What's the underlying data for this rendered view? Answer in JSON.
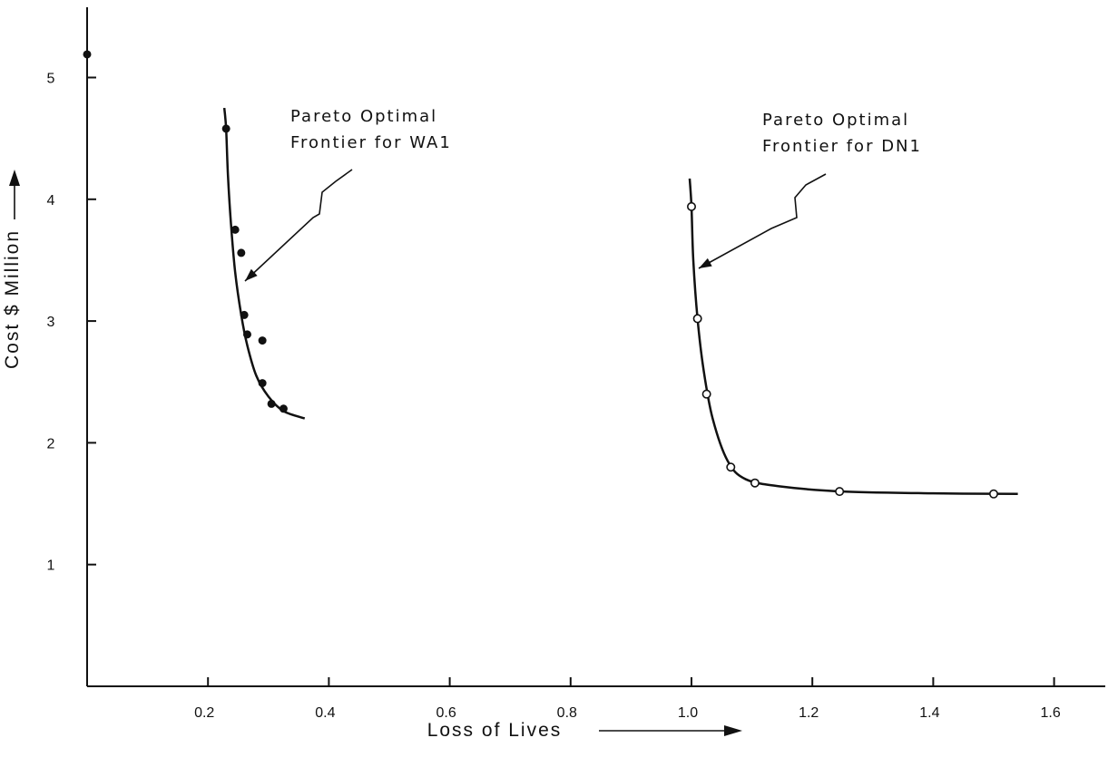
{
  "chart_data": {
    "type": "scatter",
    "xlabel": "Loss of Lives",
    "ylabel": "Cost $ Million",
    "xlim": [
      0,
      1.7
    ],
    "ylim": [
      0,
      5.5
    ],
    "x_ticks": [
      "0.2",
      "0.4",
      "0.6",
      "0.8",
      "1.0",
      "1.2",
      "1.4",
      "1.6"
    ],
    "y_ticks": [
      "1",
      "2",
      "3",
      "4",
      "5"
    ],
    "grid": false,
    "series": [
      {
        "marker": "filled",
        "points": [
          [
            0.0,
            5.19
          ],
          [
            0.23,
            4.58
          ],
          [
            0.245,
            3.75
          ],
          [
            0.255,
            3.56
          ],
          [
            0.26,
            3.05
          ],
          [
            0.265,
            2.89
          ],
          [
            0.29,
            2.84
          ],
          [
            0.29,
            2.49
          ],
          [
            0.305,
            2.32
          ],
          [
            0.325,
            2.28
          ]
        ],
        "frontier": [
          [
            0.227,
            4.75
          ],
          [
            0.23,
            4.58
          ],
          [
            0.233,
            4.2
          ],
          [
            0.238,
            3.8
          ],
          [
            0.245,
            3.4
          ],
          [
            0.255,
            3.05
          ],
          [
            0.265,
            2.8
          ],
          [
            0.28,
            2.55
          ],
          [
            0.3,
            2.38
          ],
          [
            0.325,
            2.26
          ],
          [
            0.36,
            2.2
          ]
        ]
      },
      {
        "marker": "open",
        "points": [
          [
            1.0,
            3.94
          ],
          [
            1.01,
            3.02
          ],
          [
            1.025,
            2.4
          ],
          [
            1.065,
            1.8
          ],
          [
            1.105,
            1.67
          ],
          [
            1.245,
            1.6
          ],
          [
            1.5,
            1.58
          ]
        ],
        "frontier": [
          [
            0.997,
            4.17
          ],
          [
            1.0,
            3.94
          ],
          [
            1.003,
            3.5
          ],
          [
            1.01,
            3.02
          ],
          [
            1.02,
            2.6
          ],
          [
            1.035,
            2.2
          ],
          [
            1.06,
            1.85
          ],
          [
            1.09,
            1.7
          ],
          [
            1.15,
            1.64
          ],
          [
            1.25,
            1.6
          ],
          [
            1.4,
            1.585
          ],
          [
            1.54,
            1.58
          ]
        ]
      }
    ],
    "annotations": [
      {
        "lines": [
          "Pareto Optimal",
          "Frontier for WA1"
        ],
        "points_to": [
          0.26,
          3.3
        ]
      },
      {
        "lines": [
          "Pareto Optimal",
          "Frontier for DN1"
        ],
        "points_to": [
          1.0,
          3.35
        ]
      }
    ]
  }
}
